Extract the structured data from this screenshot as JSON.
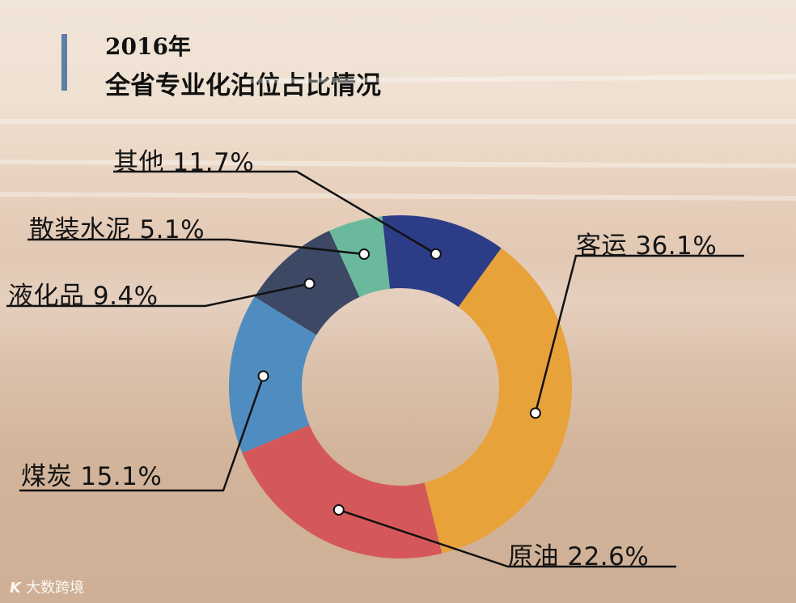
{
  "title": {
    "year": "2016年",
    "main": "全省专业化泊位占比情况"
  },
  "watermark": {
    "logo": "K",
    "text": "大数跨境"
  },
  "colors": {
    "title_bar": "#5b7fa8",
    "客运": "#e8a23a",
    "原油": "#d4585a",
    "煤炭": "#4f8dc0",
    "液化品": "#3c4864",
    "散装水泥": "#6bb99c",
    "其他": "#2c3c87"
  },
  "chart_data": {
    "type": "pie",
    "subtype": "donut",
    "title": "2016年 全省专业化泊位占比情况",
    "categories": [
      "客运",
      "原油",
      "煤炭",
      "液化品",
      "散装水泥",
      "其他"
    ],
    "values": [
      36.1,
      22.6,
      15.1,
      9.4,
      5.1,
      11.7
    ],
    "unit": "%",
    "labels": [
      "客运  36.1%",
      "原油  22.6%",
      "煤炭 15.1%",
      "液化品 9.4%",
      "散装水泥 5.1%",
      "其他 11.7%"
    ],
    "legend": "none (callout labels)"
  }
}
